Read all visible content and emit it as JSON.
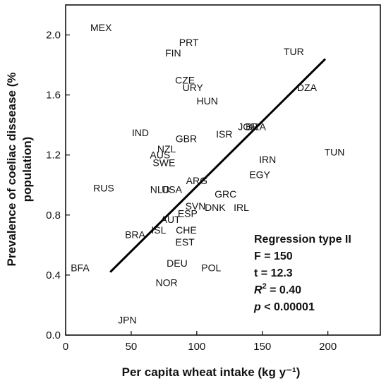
{
  "chart_data": {
    "type": "scatter",
    "xlabel": "Per capita wheat intake (kg y⁻¹)",
    "ylabel_line1": "Prevalence of coeliac dissease (%",
    "ylabel_line2": "population)",
    "xlim": [
      0,
      240
    ],
    "ylim": [
      0,
      2.2
    ],
    "xticks": [
      0,
      50,
      100,
      150,
      200
    ],
    "xtick_labels": [
      "0",
      "50",
      "100",
      "150",
      "200"
    ],
    "yticks": [
      0.0,
      0.4,
      0.8,
      1.2,
      1.6,
      2.0
    ],
    "ytick_labels": [
      "0.0",
      "0.4",
      "0.8",
      "1.2",
      "1.6",
      "2.0"
    ],
    "grid": false,
    "points": [
      {
        "label": "MEX",
        "x": 27,
        "y": 2.05
      },
      {
        "label": "PRT",
        "x": 94,
        "y": 1.95
      },
      {
        "label": "FIN",
        "x": 82,
        "y": 1.88
      },
      {
        "label": "TUR",
        "x": 174,
        "y": 1.89
      },
      {
        "label": "CZE",
        "x": 91,
        "y": 1.7
      },
      {
        "label": "URY",
        "x": 97,
        "y": 1.65
      },
      {
        "label": "DZA",
        "x": 184,
        "y": 1.65
      },
      {
        "label": "HUN",
        "x": 108,
        "y": 1.56
      },
      {
        "label": "IND",
        "x": 57,
        "y": 1.35
      },
      {
        "label": "JOR",
        "x": 139,
        "y": 1.39
      },
      {
        "label": "BRA",
        "x": 145,
        "y": 1.39
      },
      {
        "label": "ISR",
        "x": 121,
        "y": 1.34
      },
      {
        "label": "GBR",
        "x": 92,
        "y": 1.31
      },
      {
        "label": "NZL",
        "x": 77,
        "y": 1.24
      },
      {
        "label": "AUS",
        "x": 72,
        "y": 1.2
      },
      {
        "label": "SWE",
        "x": 75,
        "y": 1.15
      },
      {
        "label": "TUN",
        "x": 205,
        "y": 1.22
      },
      {
        "label": "IRN",
        "x": 154,
        "y": 1.17
      },
      {
        "label": "EGY",
        "x": 148,
        "y": 1.07
      },
      {
        "label": "ARG",
        "x": 100,
        "y": 1.03
      },
      {
        "label": "RUS",
        "x": 29,
        "y": 0.98
      },
      {
        "label": "NLD",
        "x": 72,
        "y": 0.97
      },
      {
        "label": "USA",
        "x": 81,
        "y": 0.97
      },
      {
        "label": "GRC",
        "x": 122,
        "y": 0.94
      },
      {
        "label": "SVN",
        "x": 99,
        "y": 0.86
      },
      {
        "label": "DNK",
        "x": 114,
        "y": 0.85
      },
      {
        "label": "IRL",
        "x": 134,
        "y": 0.85
      },
      {
        "label": "ESP",
        "x": 93,
        "y": 0.81
      },
      {
        "label": "AUT",
        "x": 80,
        "y": 0.77
      },
      {
        "label": "ISL",
        "x": 71,
        "y": 0.7
      },
      {
        "label": "CHE",
        "x": 92,
        "y": 0.7
      },
      {
        "label": "BRA",
        "x": 53,
        "y": 0.67
      },
      {
        "label": "EST",
        "x": 91,
        "y": 0.62
      },
      {
        "label": "DEU",
        "x": 85,
        "y": 0.48
      },
      {
        "label": "POL",
        "x": 111,
        "y": 0.45
      },
      {
        "label": "BFA",
        "x": 11,
        "y": 0.45
      },
      {
        "label": "NOR",
        "x": 77,
        "y": 0.35
      },
      {
        "label": "JPN",
        "x": 47,
        "y": 0.1
      }
    ],
    "regression_line": {
      "x": [
        34,
        198
      ],
      "y": [
        0.42,
        1.84
      ]
    },
    "stats": {
      "title": "Regression type II",
      "f": "F = 150",
      "t": "t = 12.3",
      "r2_symbol": "R",
      "r2_sup": "2",
      "r2_value": " = 0.40",
      "p_symbol": "p",
      "p_value": " < 0.00001"
    }
  }
}
